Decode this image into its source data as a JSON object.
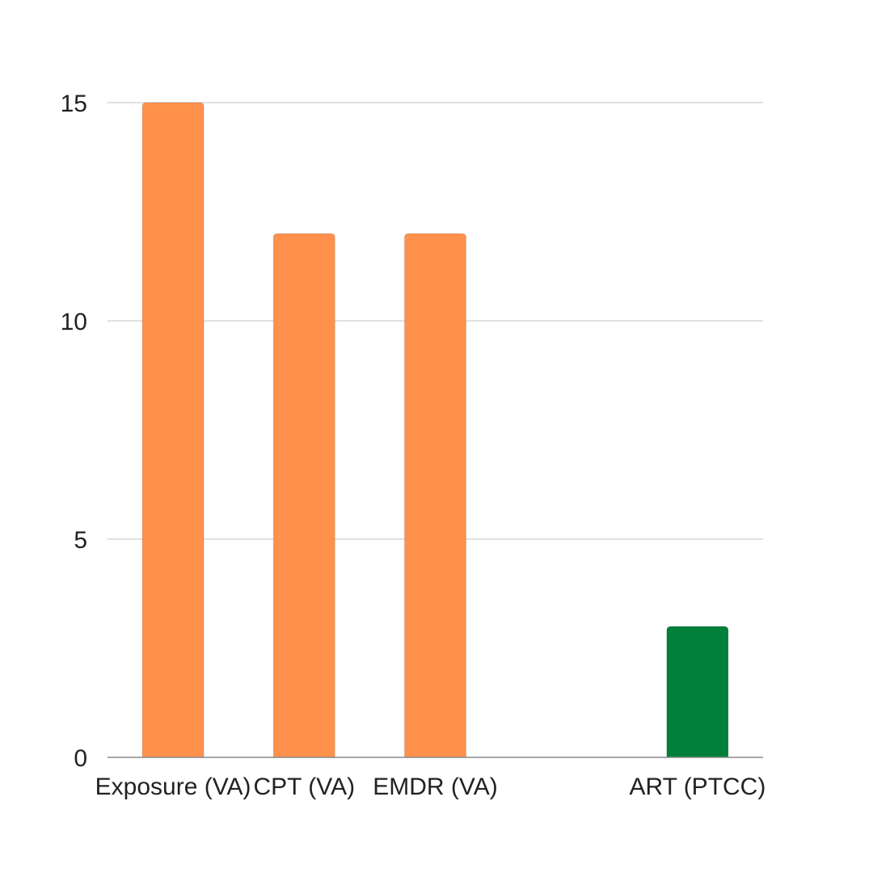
{
  "chart_data": {
    "type": "bar",
    "title": "",
    "xlabel": "",
    "ylabel": "",
    "ylim": [
      0,
      15
    ],
    "yticks": [
      0,
      5,
      10,
      15
    ],
    "grid": true,
    "categories": [
      "Exposure (VA)",
      "CPT (VA)",
      "EMDR (VA)",
      "",
      "ART (PTCC)"
    ],
    "values": [
      15,
      12,
      12,
      null,
      3
    ],
    "colors": [
      "#FF914D",
      "#FF914D",
      "#FF914D",
      "#FF914D",
      "#00803A"
    ]
  }
}
